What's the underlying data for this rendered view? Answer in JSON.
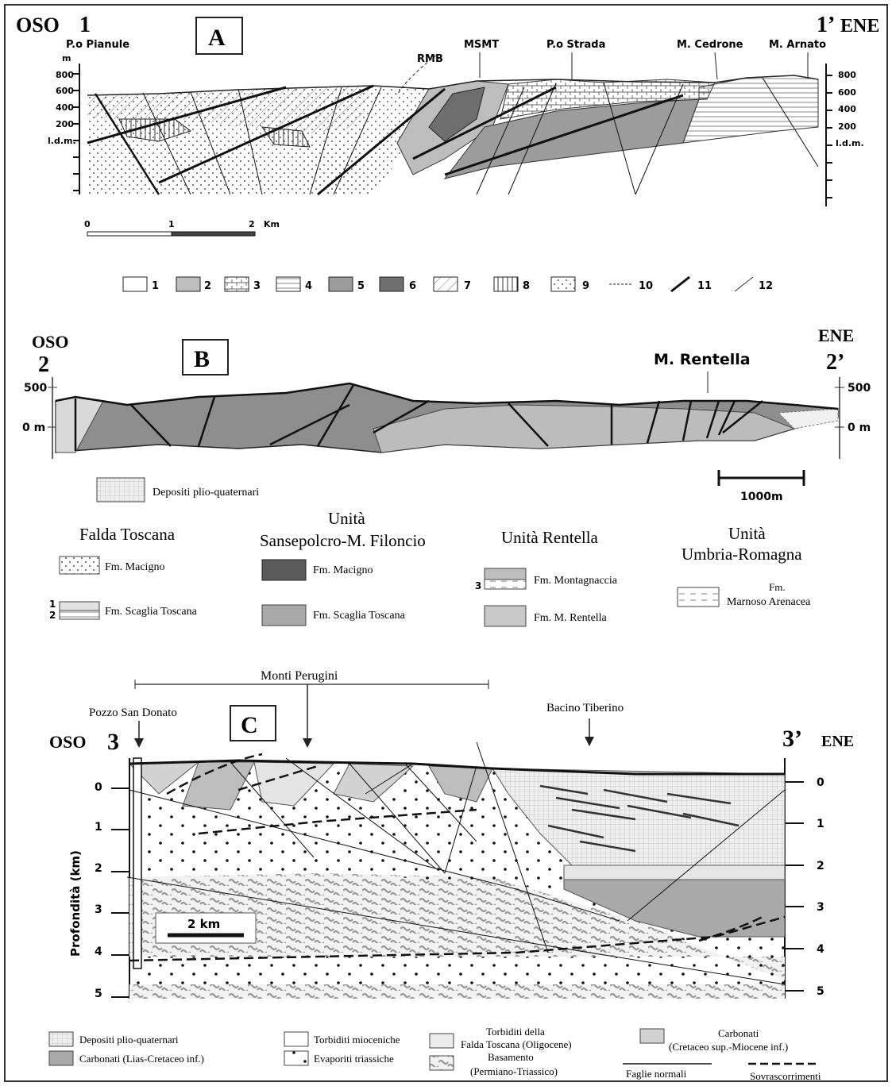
{
  "panel_a": {
    "letter": "A",
    "left_dir": "OSO",
    "left_num": "1",
    "right_num": "1’",
    "right_dir": "ENE",
    "peaks": [
      "P.o Pianule",
      "RMB",
      "MSMT",
      "P.o Strada",
      "M. Cedrone",
      "M. Arnato"
    ],
    "unit": "m",
    "elev_ticks": [
      "800",
      "600",
      "400",
      "200",
      "l.d.m."
    ],
    "right_ticks": [
      "800",
      "600",
      "400",
      "200",
      "l.d.m."
    ],
    "scale": {
      "ticks": [
        "0",
        "1",
        "2"
      ],
      "unit": "Km"
    },
    "legend_numbers": [
      "1",
      "2",
      "3",
      "4",
      "5",
      "6",
      "7",
      "8",
      "9",
      "10",
      "11",
      "12"
    ]
  },
  "panel_b": {
    "letter": "B",
    "left_dir": "OSO",
    "left_num": "2",
    "right_num": "2’",
    "right_dir": "ENE",
    "peak": "M. Rentella",
    "left_ticks": [
      "500",
      "0 m"
    ],
    "right_ticks": [
      "500",
      "0 m"
    ],
    "scale_label": "1000m",
    "legend": {
      "depositi": "Depositi plio-quaternari",
      "group1": {
        "title": "Falda Toscana",
        "items": [
          "Fm. Macigno",
          "Fm. Scaglia Toscana"
        ],
        "nums": [
          "1",
          "2"
        ]
      },
      "group2": {
        "title_l1": "Unità",
        "title_l2": "Sansepolcro-M. Filoncio",
        "items": [
          "Fm. Macigno",
          "Fm. Scaglia Toscana"
        ]
      },
      "group3": {
        "title": "Unità Rentella",
        "items": [
          "Fm. Montagnaccia",
          "Fm. M. Rentella"
        ],
        "num": "3"
      },
      "group4": {
        "title_l1": "Unità",
        "title_l2": "Umbria-Romagna",
        "item_l1": "Fm.",
        "item_l2": "Marnoso Arenacea"
      }
    }
  },
  "panel_c": {
    "letter": "C",
    "left_dir": "OSO",
    "left_num": "3",
    "right_num": "3’",
    "right_dir": "ENE",
    "top_label": "Monti Perugini",
    "well": "Pozzo San Donato",
    "basin": "Bacino Tiberino",
    "axis_label": "Profondità (km)",
    "depth_ticks": [
      "0",
      "1",
      "2",
      "3",
      "4",
      "5"
    ],
    "scale_label": "2 km",
    "legend": {
      "l1": "Depositi plio-quaternari",
      "l2": "Carbonati (Lias-Cretaceo inf.)",
      "l3": "Torbiditi mioceniche",
      "l4": "Evaporiti triassiche",
      "l5a": "Torbiditi della",
      "l5b": "Falda Toscana (Oligocene)",
      "l6a": "Basamento",
      "l6b": "(Permiano-Triassico)",
      "l7a": "Carbonati",
      "l7b": "(Cretaceo sup.-Miocene inf.)",
      "l8": "Faglie normali",
      "l9": "Sovrascorrimenti"
    }
  }
}
